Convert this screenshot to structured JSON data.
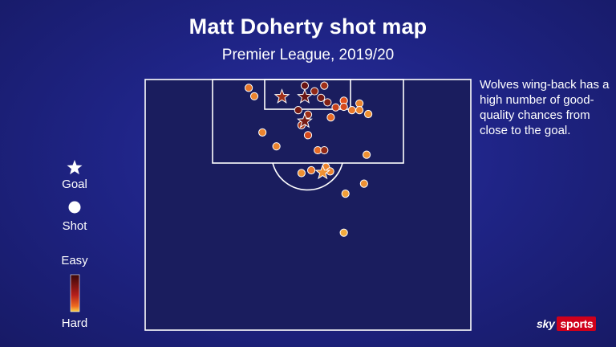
{
  "header": {
    "title": "Matt Doherty shot map",
    "subtitle": "Premier League, 2019/20"
  },
  "note": "Wolves wing-back has a high number of good-quality chances from close to the goal.",
  "legend": {
    "goal_label": "Goal",
    "shot_label": "Shot",
    "scale_top": "Easy",
    "scale_bottom": "Hard"
  },
  "brand": {
    "sky": "sky",
    "sports": "sports"
  },
  "colors": {
    "background": "#1f2486",
    "pitch_fill": "#1a1d5e",
    "line": "#ffffff",
    "easy": "#5a0d12",
    "mid": "#e3501c",
    "hard": "#f8d24a"
  },
  "chart_data": {
    "type": "scatter",
    "title": "Matt Doherty shot map",
    "subtitle": "Premier League, 2019/20",
    "units": "pitch x (0-100 across width), y (metres from goal line), quality 0=hard 1=easy",
    "xlim": [
      0,
      100
    ],
    "ylim": [
      0,
      45
    ],
    "shots": [
      {
        "x": 31.8,
        "y": 1.5,
        "quality": 0.35,
        "outcome": "shot"
      },
      {
        "x": 33.5,
        "y": 3.0,
        "quality": 0.3,
        "outcome": "shot"
      },
      {
        "x": 42.0,
        "y": 3.1,
        "quality": 0.75,
        "outcome": "goal"
      },
      {
        "x": 49.0,
        "y": 1.1,
        "quality": 0.95,
        "outcome": "shot"
      },
      {
        "x": 49.0,
        "y": 3.1,
        "quality": 0.95,
        "outcome": "goal"
      },
      {
        "x": 52.0,
        "y": 2.1,
        "quality": 0.8,
        "outcome": "shot"
      },
      {
        "x": 54.0,
        "y": 3.3,
        "quality": 0.9,
        "outcome": "shot"
      },
      {
        "x": 56.0,
        "y": 4.1,
        "quality": 0.85,
        "outcome": "shot"
      },
      {
        "x": 55.0,
        "y": 1.1,
        "quality": 0.75,
        "outcome": "shot"
      },
      {
        "x": 47.0,
        "y": 5.5,
        "quality": 0.9,
        "outcome": "shot"
      },
      {
        "x": 49.0,
        "y": 7.5,
        "quality": 0.9,
        "outcome": "goal"
      },
      {
        "x": 48.0,
        "y": 8.2,
        "quality": 0.7,
        "outcome": "shot"
      },
      {
        "x": 50.0,
        "y": 6.3,
        "quality": 0.75,
        "outcome": "shot"
      },
      {
        "x": 50.0,
        "y": 10.0,
        "quality": 0.55,
        "outcome": "shot"
      },
      {
        "x": 58.5,
        "y": 5.0,
        "quality": 0.6,
        "outcome": "shot"
      },
      {
        "x": 61.0,
        "y": 3.8,
        "quality": 0.5,
        "outcome": "shot"
      },
      {
        "x": 61.0,
        "y": 4.9,
        "quality": 0.55,
        "outcome": "shot"
      },
      {
        "x": 63.5,
        "y": 5.5,
        "quality": 0.35,
        "outcome": "shot"
      },
      {
        "x": 65.8,
        "y": 4.3,
        "quality": 0.3,
        "outcome": "shot"
      },
      {
        "x": 65.8,
        "y": 5.5,
        "quality": 0.3,
        "outcome": "shot"
      },
      {
        "x": 68.5,
        "y": 6.2,
        "quality": 0.25,
        "outcome": "shot"
      },
      {
        "x": 57.0,
        "y": 6.8,
        "quality": 0.4,
        "outcome": "shot"
      },
      {
        "x": 36.0,
        "y": 9.5,
        "quality": 0.3,
        "outcome": "shot"
      },
      {
        "x": 40.3,
        "y": 12.0,
        "quality": 0.3,
        "outcome": "shot"
      },
      {
        "x": 53.0,
        "y": 12.7,
        "quality": 0.4,
        "outcome": "shot"
      },
      {
        "x": 55.0,
        "y": 12.7,
        "quality": 0.8,
        "outcome": "shot"
      },
      {
        "x": 55.5,
        "y": 15.7,
        "quality": 0.3,
        "outcome": "shot"
      },
      {
        "x": 54.5,
        "y": 16.7,
        "quality": 0.25,
        "outcome": "goal"
      },
      {
        "x": 48.0,
        "y": 16.8,
        "quality": 0.25,
        "outcome": "shot"
      },
      {
        "x": 51.0,
        "y": 16.3,
        "quality": 0.35,
        "outcome": "shot"
      },
      {
        "x": 56.8,
        "y": 16.5,
        "quality": 0.3,
        "outcome": "shot"
      },
      {
        "x": 68.0,
        "y": 13.5,
        "quality": 0.25,
        "outcome": "shot"
      },
      {
        "x": 67.2,
        "y": 18.7,
        "quality": 0.25,
        "outcome": "shot"
      },
      {
        "x": 61.5,
        "y": 20.5,
        "quality": 0.2,
        "outcome": "shot"
      },
      {
        "x": 61.0,
        "y": 27.5,
        "quality": 0.15,
        "outcome": "shot"
      }
    ]
  }
}
